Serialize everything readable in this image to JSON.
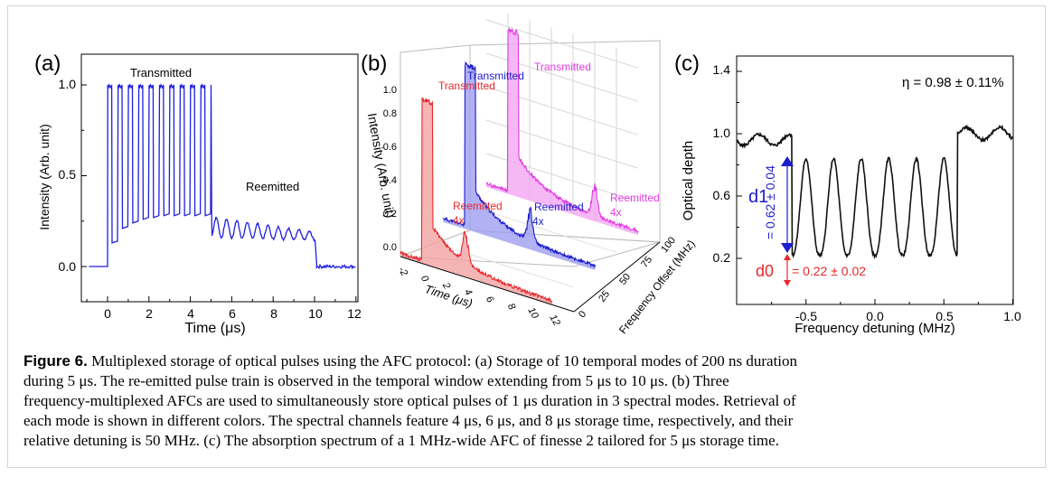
{
  "panels": {
    "a": {
      "label": "(a)",
      "ylabel": "Intensity (Arb. unit)",
      "xlabel": "Time (μs)",
      "yticks": [
        "0.0",
        "0.5",
        "1.0"
      ],
      "xticks": [
        "0",
        "2",
        "4",
        "6",
        "8",
        "10",
        "12"
      ],
      "annotation_transmitted": "Transmitted",
      "annotation_reemitted": "Reemitted",
      "color": "#1f1fe0"
    },
    "b": {
      "label": "(b)",
      "ylabel": "Intensity (Arb. unit)",
      "xlabel": "Time (μs)",
      "zlabel": "Frequency Offset (MHz)",
      "zticks": [
        "0",
        "25",
        "50",
        "75",
        "100"
      ],
      "tticks": [
        "-2",
        "0",
        "2",
        "4",
        "6",
        "8",
        "10",
        "12"
      ],
      "yticks": [
        "0.0",
        "0.2",
        "0.4",
        "0.6",
        "0.8",
        "1.0"
      ],
      "series": [
        {
          "transmitted_label": "Transmitted",
          "reemitted_label": "Reemitted",
          "scale_label": "4x",
          "color": "#e8282b",
          "fill": "#f3a3a3"
        },
        {
          "transmitted_label": "Transmitted",
          "reemitted_label": "Reemitted",
          "scale_label": "4x",
          "color": "#1c1cd0",
          "fill": "#9d9df1"
        },
        {
          "transmitted_label": "Transmitted",
          "reemitted_label": "Reemitted",
          "scale_label": "4x",
          "color": "#e13ce1",
          "fill": "#f3a6f3"
        }
      ]
    },
    "c": {
      "label": "(c)",
      "ylabel": "Optical depth",
      "xlabel": "Frequency detuning (MHz)",
      "yticks": [
        "0.2",
        "0.6",
        "1.0",
        "1.4"
      ],
      "xticks": [
        "-0.5",
        "0.0",
        "0.5",
        "1.0"
      ],
      "efficiency": "η = 0.98 ± 0.11%",
      "d1_label": "d1",
      "d1_value": "= 0.62 ± 0.04",
      "d0_label": "d0",
      "d0_value": "= 0.22 ± 0.02",
      "d1_color": "#1c1cd0",
      "d0_color": "#e8282b"
    }
  },
  "caption": {
    "figure_label": "Figure 6.",
    "lines": [
      "Multiplexed storage of optical pulses using the AFC protocol: (a) Storage of 10 temporal modes of 200 ns duration",
      "during 5 μs. The re-emitted pulse train is observed in the temporal window extending from 5 μs to 10 μs. (b) Three",
      "frequency-multiplexed AFCs are used to simultaneously store optical pulses of 1 μs duration in 3 spectral modes. Retrieval of",
      "each mode is shown in different colors. The spectral channels feature 4 μs, 6 μs, and 8 μs storage time, respectively, and their",
      "relative detuning is 50 MHz. (c) The absorption spectrum of a 1 MHz-wide AFC of finesse 2 tailored for 5 μs storage time."
    ]
  }
}
